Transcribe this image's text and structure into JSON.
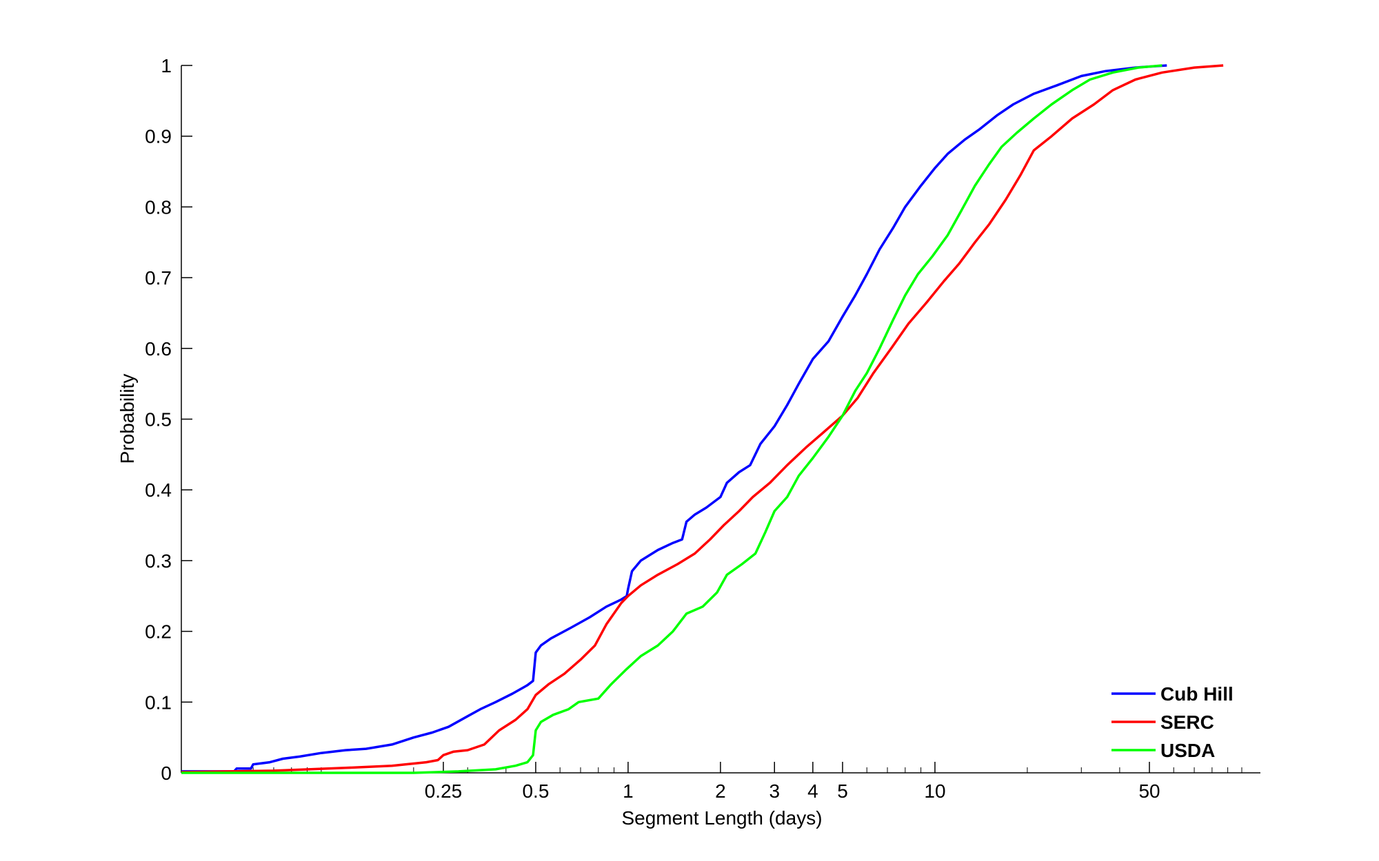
{
  "chart_data": {
    "type": "line",
    "xlabel": "Segment Length (days)",
    "ylabel": "Probability",
    "x_scale": "log",
    "xlim": [
      0.035,
      115
    ],
    "ylim": [
      0,
      1
    ],
    "x_ticks": [
      {
        "value": 0.25,
        "label": "0.25"
      },
      {
        "value": 0.5,
        "label": "0.5"
      },
      {
        "value": 1,
        "label": "1"
      },
      {
        "value": 2,
        "label": "2"
      },
      {
        "value": 3,
        "label": "3"
      },
      {
        "value": 4,
        "label": "4"
      },
      {
        "value": 5,
        "label": "5"
      },
      {
        "value": 10,
        "label": "10"
      },
      {
        "value": 50,
        "label": "50"
      }
    ],
    "y_ticks": [
      {
        "value": 0,
        "label": "0"
      },
      {
        "value": 0.1,
        "label": "0.1"
      },
      {
        "value": 0.2,
        "label": "0.2"
      },
      {
        "value": 0.3,
        "label": "0.3"
      },
      {
        "value": 0.4,
        "label": "0.4"
      },
      {
        "value": 0.5,
        "label": "0.5"
      },
      {
        "value": 0.6,
        "label": "0.6"
      },
      {
        "value": 0.7,
        "label": "0.7"
      },
      {
        "value": 0.8,
        "label": "0.8"
      },
      {
        "value": 0.9,
        "label": "0.9"
      },
      {
        "value": 1,
        "label": "1"
      }
    ],
    "grid": false,
    "legend_position": "bottom-right",
    "series": [
      {
        "name": "Cub Hill",
        "color": "#0000ff",
        "points": [
          [
            0.035,
            0.002
          ],
          [
            0.052,
            0.002
          ],
          [
            0.053,
            0.006
          ],
          [
            0.059,
            0.006
          ],
          [
            0.06,
            0.012
          ],
          [
            0.068,
            0.015
          ],
          [
            0.075,
            0.02
          ],
          [
            0.085,
            0.023
          ],
          [
            0.1,
            0.028
          ],
          [
            0.12,
            0.032
          ],
          [
            0.14,
            0.034
          ],
          [
            0.17,
            0.04
          ],
          [
            0.2,
            0.05
          ],
          [
            0.23,
            0.057
          ],
          [
            0.26,
            0.065
          ],
          [
            0.3,
            0.08
          ],
          [
            0.33,
            0.09
          ],
          [
            0.37,
            0.1
          ],
          [
            0.42,
            0.112
          ],
          [
            0.47,
            0.124
          ],
          [
            0.49,
            0.13
          ],
          [
            0.5,
            0.17
          ],
          [
            0.52,
            0.18
          ],
          [
            0.56,
            0.19
          ],
          [
            0.65,
            0.205
          ],
          [
            0.75,
            0.22
          ],
          [
            0.85,
            0.235
          ],
          [
            0.95,
            0.245
          ],
          [
            0.99,
            0.25
          ],
          [
            1.0,
            0.26
          ],
          [
            1.03,
            0.285
          ],
          [
            1.1,
            0.3
          ],
          [
            1.25,
            0.315
          ],
          [
            1.4,
            0.325
          ],
          [
            1.5,
            0.33
          ],
          [
            1.55,
            0.355
          ],
          [
            1.65,
            0.365
          ],
          [
            1.8,
            0.375
          ],
          [
            2.0,
            0.39
          ],
          [
            2.1,
            0.41
          ],
          [
            2.3,
            0.425
          ],
          [
            2.5,
            0.435
          ],
          [
            2.7,
            0.465
          ],
          [
            3.0,
            0.49
          ],
          [
            3.3,
            0.52
          ],
          [
            3.6,
            0.55
          ],
          [
            4.0,
            0.585
          ],
          [
            4.5,
            0.61
          ],
          [
            5.0,
            0.645
          ],
          [
            5.5,
            0.675
          ],
          [
            6.0,
            0.705
          ],
          [
            6.6,
            0.74
          ],
          [
            7.3,
            0.77
          ],
          [
            8.0,
            0.8
          ],
          [
            9.0,
            0.83
          ],
          [
            10,
            0.855
          ],
          [
            11,
            0.875
          ],
          [
            12.5,
            0.895
          ],
          [
            14,
            0.91
          ],
          [
            16,
            0.93
          ],
          [
            18,
            0.945
          ],
          [
            21,
            0.96
          ],
          [
            25,
            0.972
          ],
          [
            30,
            0.985
          ],
          [
            36,
            0.992
          ],
          [
            45,
            0.997
          ],
          [
            57,
            1.0
          ]
        ]
      },
      {
        "name": "SERC",
        "color": "#ff0000",
        "points": [
          [
            0.035,
            0.001
          ],
          [
            0.07,
            0.003
          ],
          [
            0.12,
            0.007
          ],
          [
            0.17,
            0.01
          ],
          [
            0.22,
            0.015
          ],
          [
            0.24,
            0.018
          ],
          [
            0.25,
            0.025
          ],
          [
            0.27,
            0.03
          ],
          [
            0.3,
            0.032
          ],
          [
            0.34,
            0.04
          ],
          [
            0.38,
            0.06
          ],
          [
            0.43,
            0.075
          ],
          [
            0.47,
            0.09
          ],
          [
            0.5,
            0.11
          ],
          [
            0.55,
            0.125
          ],
          [
            0.62,
            0.14
          ],
          [
            0.7,
            0.16
          ],
          [
            0.78,
            0.18
          ],
          [
            0.85,
            0.21
          ],
          [
            0.95,
            0.24
          ],
          [
            1.0,
            0.25
          ],
          [
            1.1,
            0.265
          ],
          [
            1.25,
            0.28
          ],
          [
            1.45,
            0.295
          ],
          [
            1.65,
            0.31
          ],
          [
            1.85,
            0.33
          ],
          [
            2.05,
            0.35
          ],
          [
            2.3,
            0.37
          ],
          [
            2.55,
            0.39
          ],
          [
            2.9,
            0.41
          ],
          [
            3.3,
            0.435
          ],
          [
            3.8,
            0.46
          ],
          [
            4.3,
            0.48
          ],
          [
            5.0,
            0.505
          ],
          [
            5.6,
            0.53
          ],
          [
            6.3,
            0.565
          ],
          [
            7.2,
            0.6
          ],
          [
            8.2,
            0.635
          ],
          [
            9.4,
            0.665
          ],
          [
            10.7,
            0.695
          ],
          [
            12,
            0.72
          ],
          [
            13.5,
            0.75
          ],
          [
            15,
            0.775
          ],
          [
            17,
            0.81
          ],
          [
            19,
            0.845
          ],
          [
            21,
            0.88
          ],
          [
            24,
            0.9
          ],
          [
            28,
            0.925
          ],
          [
            33,
            0.945
          ],
          [
            38,
            0.965
          ],
          [
            45,
            0.98
          ],
          [
            55,
            0.99
          ],
          [
            70,
            0.997
          ],
          [
            87,
            1.0
          ]
        ]
      },
      {
        "name": "USDA",
        "color": "#00ff00",
        "points": [
          [
            0.035,
            0.0
          ],
          [
            0.2,
            0.0
          ],
          [
            0.28,
            0.002
          ],
          [
            0.37,
            0.005
          ],
          [
            0.43,
            0.01
          ],
          [
            0.47,
            0.015
          ],
          [
            0.49,
            0.025
          ],
          [
            0.5,
            0.06
          ],
          [
            0.52,
            0.072
          ],
          [
            0.57,
            0.082
          ],
          [
            0.64,
            0.09
          ],
          [
            0.69,
            0.1
          ],
          [
            0.8,
            0.105
          ],
          [
            0.88,
            0.125
          ],
          [
            0.98,
            0.145
          ],
          [
            1.1,
            0.165
          ],
          [
            1.25,
            0.18
          ],
          [
            1.4,
            0.2
          ],
          [
            1.55,
            0.225
          ],
          [
            1.75,
            0.235
          ],
          [
            1.95,
            0.255
          ],
          [
            2.1,
            0.28
          ],
          [
            2.35,
            0.295
          ],
          [
            2.6,
            0.31
          ],
          [
            2.8,
            0.34
          ],
          [
            3.0,
            0.37
          ],
          [
            3.3,
            0.39
          ],
          [
            3.6,
            0.42
          ],
          [
            4.0,
            0.445
          ],
          [
            4.5,
            0.475
          ],
          [
            5.0,
            0.505
          ],
          [
            5.5,
            0.54
          ],
          [
            6.0,
            0.565
          ],
          [
            6.6,
            0.6
          ],
          [
            7.3,
            0.64
          ],
          [
            8.0,
            0.675
          ],
          [
            8.8,
            0.705
          ],
          [
            9.8,
            0.73
          ],
          [
            11,
            0.76
          ],
          [
            12.2,
            0.795
          ],
          [
            13.5,
            0.83
          ],
          [
            15,
            0.86
          ],
          [
            16.5,
            0.885
          ],
          [
            18.5,
            0.905
          ],
          [
            21,
            0.925
          ],
          [
            24,
            0.945
          ],
          [
            28,
            0.965
          ],
          [
            32,
            0.98
          ],
          [
            38,
            0.99
          ],
          [
            46,
            0.997
          ],
          [
            55,
            1.0
          ]
        ]
      }
    ]
  }
}
